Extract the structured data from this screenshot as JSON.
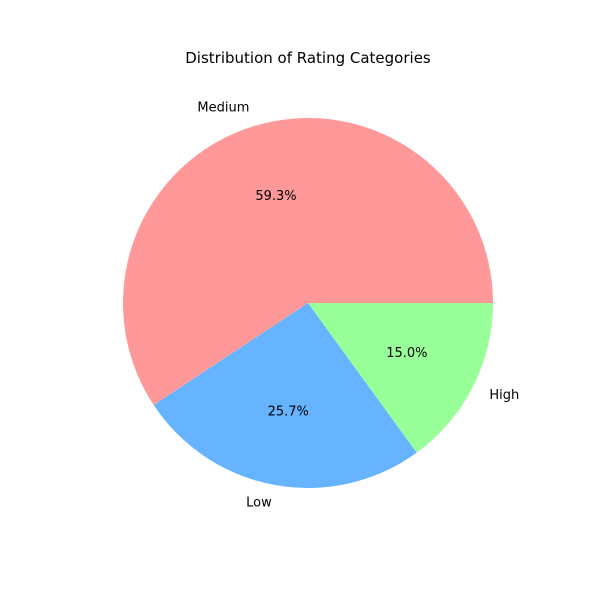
{
  "chart_data": {
    "type": "pie",
    "title": "Distribution of Rating Categories",
    "start_angle_deg": 0,
    "direction": "counterclockwise",
    "slices": [
      {
        "label": "Medium",
        "value": 59.3,
        "pct_text": "59.3%",
        "color": "#ff9999"
      },
      {
        "label": "Low",
        "value": 25.7,
        "pct_text": "25.7%",
        "color": "#66b3ff"
      },
      {
        "label": "High",
        "value": 15.0,
        "pct_text": "15.0%",
        "color": "#99ff99"
      }
    ]
  }
}
